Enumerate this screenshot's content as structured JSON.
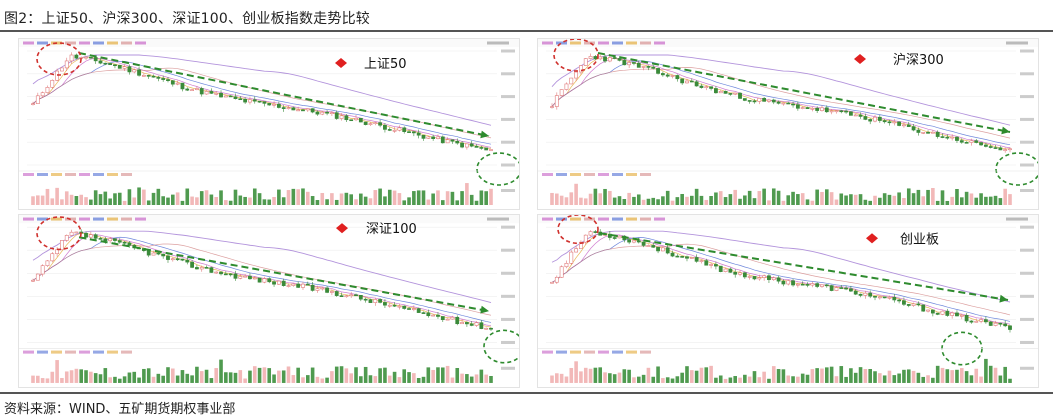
{
  "figure": {
    "title": "图2：上证50、沪深300、深证100、创业板指数走势比较",
    "source": "资料来源：WIND、五矿期货期权事业部"
  },
  "chart_data": [
    {
      "type": "candlestick",
      "title": "上证50",
      "trend": "down",
      "legend_marker_color": "#e02020",
      "trend_line_color": "#2e8b2e",
      "ellipse_color": "#d0312d",
      "y_label_color": "#999999"
    },
    {
      "type": "candlestick",
      "title": "沪深300",
      "trend": "down",
      "legend_marker_color": "#e02020",
      "trend_line_color": "#2e8b2e",
      "ellipse_color": "#d0312d",
      "y_label_color": "#999999"
    },
    {
      "type": "candlestick",
      "title": "深证100",
      "trend": "down",
      "legend_marker_color": "#e02020",
      "trend_line_color": "#2e8b2e",
      "ellipse_color": "#d0312d",
      "y_label_color": "#999999"
    },
    {
      "type": "candlestick",
      "title": "创业板",
      "trend": "down",
      "legend_marker_color": "#e02020",
      "trend_line_color": "#2e8b2e",
      "ellipse_color": "#d0312d",
      "y_label_color": "#999999"
    }
  ],
  "colors": {
    "up": "#e07a7a",
    "down": "#3a8a3a",
    "ma": [
      "#e0a020",
      "#c050c0",
      "#4060d0",
      "#d08080",
      "#9a70d0"
    ]
  }
}
